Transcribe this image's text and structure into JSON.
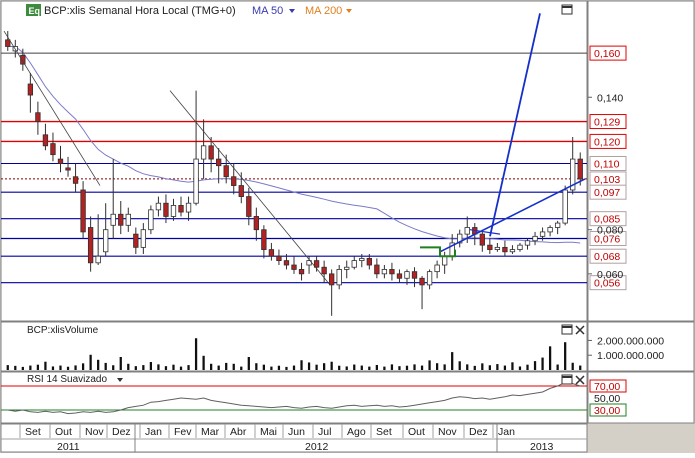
{
  "header": {
    "logo": "Eq",
    "symbol": "BCP:xlis Semanal Hora Local (TMG+0)",
    "ma50": "MA 50",
    "ma200": "MA 200"
  },
  "volume_panel": {
    "label": "BCP:xlisVolume"
  },
  "rsi_panel": {
    "label": "RSI 14 Suavizado"
  },
  "colors": {
    "up": "#ffffff",
    "down": "#b22222",
    "ma50": "#7b7bc8",
    "ma200": "#e08020",
    "resistance": "#e00000",
    "support": "#0000a0",
    "trend": "#1530c8",
    "rsi_line": "#606060",
    "rsi_70": "#e00000",
    "rsi_30": "#208020"
  },
  "chart_data": [
    {
      "type": "candlestick",
      "title": "BCP:xlis Semanal Hora Local (TMG+0)",
      "y_axis_labels": [
        "0,140",
        "0,080",
        "0,060"
      ],
      "ylim": [
        0.04,
        0.175
      ],
      "price_levels": [
        {
          "value": 0.16,
          "label": "0,160",
          "kind": "resistance"
        },
        {
          "value": 0.129,
          "label": "0,129",
          "kind": "resistance"
        },
        {
          "value": 0.12,
          "label": "0,120",
          "kind": "resistance"
        },
        {
          "value": 0.11,
          "label": "0,110",
          "kind": "support"
        },
        {
          "value": 0.103,
          "label": "0,103",
          "kind": "last"
        },
        {
          "value": 0.097,
          "label": "0,097",
          "kind": "support"
        },
        {
          "value": 0.085,
          "label": "0,085",
          "kind": "support"
        },
        {
          "value": 0.076,
          "label": "0,076",
          "kind": "support"
        },
        {
          "value": 0.068,
          "label": "0,068",
          "kind": "support"
        },
        {
          "value": 0.056,
          "label": "0,056",
          "kind": "support"
        }
      ],
      "candles": [
        [
          0.166,
          0.17,
          0.163,
          0.161
        ],
        [
          0.161,
          0.166,
          0.163,
          0.158
        ],
        [
          0.159,
          0.162,
          0.155,
          0.152
        ],
        [
          0.146,
          0.151,
          0.141,
          0.133
        ],
        [
          0.133,
          0.138,
          0.129,
          0.123
        ],
        [
          0.123,
          0.128,
          0.118,
          0.116
        ],
        [
          0.119,
          0.124,
          0.114,
          0.111
        ],
        [
          0.112,
          0.118,
          0.11,
          0.106
        ],
        [
          0.108,
          0.113,
          0.107,
          0.104
        ],
        [
          0.104,
          0.11,
          0.101,
          0.097
        ],
        [
          0.098,
          0.102,
          0.079,
          0.076
        ],
        [
          0.081,
          0.086,
          0.065,
          0.061
        ],
        [
          0.065,
          0.087,
          0.068,
          0.064
        ],
        [
          0.07,
          0.092,
          0.08,
          0.068
        ],
        [
          0.082,
          0.112,
          0.087,
          0.076
        ],
        [
          0.087,
          0.093,
          0.082,
          0.078
        ],
        [
          0.082,
          0.09,
          0.087,
          0.079
        ],
        [
          0.078,
          0.081,
          0.072,
          0.069
        ],
        [
          0.072,
          0.083,
          0.08,
          0.069
        ],
        [
          0.08,
          0.091,
          0.089,
          0.078
        ],
        [
          0.089,
          0.095,
          0.092,
          0.086
        ],
        [
          0.092,
          0.096,
          0.086,
          0.083
        ],
        [
          0.086,
          0.094,
          0.091,
          0.084
        ],
        [
          0.091,
          0.095,
          0.088,
          0.086
        ],
        [
          0.088,
          0.095,
          0.092,
          0.084
        ],
        [
          0.092,
          0.143,
          0.112,
          0.091
        ],
        [
          0.112,
          0.13,
          0.118,
          0.103
        ],
        [
          0.118,
          0.122,
          0.112,
          0.106
        ],
        [
          0.112,
          0.117,
          0.109,
          0.101
        ],
        [
          0.109,
          0.114,
          0.104,
          0.101
        ],
        [
          0.104,
          0.11,
          0.1,
          0.096
        ],
        [
          0.1,
          0.106,
          0.095,
          0.092
        ],
        [
          0.095,
          0.099,
          0.086,
          0.082
        ],
        [
          0.086,
          0.09,
          0.08,
          0.075
        ],
        [
          0.08,
          0.082,
          0.071,
          0.067
        ],
        [
          0.071,
          0.074,
          0.068,
          0.066
        ],
        [
          0.068,
          0.071,
          0.066,
          0.064
        ],
        [
          0.066,
          0.069,
          0.064,
          0.062
        ],
        [
          0.064,
          0.068,
          0.062,
          0.06
        ],
        [
          0.062,
          0.065,
          0.06,
          0.057
        ],
        [
          0.064,
          0.068,
          0.066,
          0.06
        ],
        [
          0.066,
          0.068,
          0.063,
          0.061
        ],
        [
          0.063,
          0.066,
          0.06,
          0.056
        ],
        [
          0.06,
          0.062,
          0.055,
          0.041
        ],
        [
          0.055,
          0.064,
          0.062,
          0.053
        ],
        [
          0.062,
          0.066,
          0.063,
          0.058
        ],
        [
          0.063,
          0.068,
          0.066,
          0.062
        ],
        [
          0.066,
          0.069,
          0.067,
          0.063
        ],
        [
          0.067,
          0.069,
          0.064,
          0.062
        ],
        [
          0.064,
          0.067,
          0.06,
          0.058
        ],
        [
          0.06,
          0.064,
          0.062,
          0.058
        ],
        [
          0.062,
          0.065,
          0.06,
          0.057
        ],
        [
          0.06,
          0.062,
          0.058,
          0.056
        ],
        [
          0.058,
          0.062,
          0.061,
          0.055
        ],
        [
          0.061,
          0.063,
          0.058,
          0.054
        ],
        [
          0.058,
          0.059,
          0.055,
          0.044
        ],
        [
          0.055,
          0.062,
          0.061,
          0.053
        ],
        [
          0.061,
          0.066,
          0.064,
          0.058
        ],
        [
          0.064,
          0.07,
          0.068,
          0.06
        ],
        [
          0.068,
          0.078,
          0.074,
          0.066
        ],
        [
          0.074,
          0.08,
          0.078,
          0.072
        ],
        [
          0.078,
          0.086,
          0.081,
          0.074
        ],
        [
          0.081,
          0.083,
          0.078,
          0.073
        ],
        [
          0.078,
          0.08,
          0.073,
          0.07
        ],
        [
          0.073,
          0.076,
          0.071,
          0.069
        ],
        [
          0.071,
          0.074,
          0.072,
          0.07
        ],
        [
          0.072,
          0.075,
          0.07,
          0.068
        ],
        [
          0.07,
          0.073,
          0.071,
          0.069
        ],
        [
          0.071,
          0.074,
          0.073,
          0.07
        ],
        [
          0.073,
          0.076,
          0.075,
          0.071
        ],
        [
          0.075,
          0.079,
          0.077,
          0.073
        ],
        [
          0.077,
          0.081,
          0.079,
          0.075
        ],
        [
          0.079,
          0.082,
          0.081,
          0.077
        ],
        [
          0.081,
          0.084,
          0.083,
          0.078
        ],
        [
          0.083,
          0.1,
          0.098,
          0.082
        ],
        [
          0.098,
          0.122,
          0.112,
          0.096
        ],
        [
          0.112,
          0.115,
          0.103,
          0.1
        ]
      ],
      "volume": {
        "axis_labels": [
          "2.000.000.000",
          "1.000.000.000"
        ],
        "ylim": [
          0,
          2300000000
        ],
        "values": [
          330,
          280,
          210,
          300,
          360,
          560,
          240,
          300,
          220,
          310,
          450,
          1030,
          690,
          480,
          320,
          880,
          420,
          260,
          330,
          540,
          380,
          260,
          360,
          230,
          330,
          2150,
          960,
          420,
          300,
          480,
          420,
          230,
          880,
          460,
          360,
          230,
          290,
          210,
          300,
          660,
          510,
          360,
          460,
          560,
          290,
          240,
          370,
          300,
          230,
          340,
          230,
          380,
          260,
          290,
          380,
          300,
          650,
          460,
          380,
          1210,
          590,
          380,
          280,
          450,
          320,
          400,
          300,
          520,
          240,
          360,
          600,
          840,
          1600,
          370,
          1880,
          490,
          300
        ]
      },
      "rsi": {
        "axis_labels": [
          "70,00",
          "50,00",
          "30,00"
        ],
        "ylim": [
          10,
          90
        ],
        "levels": [
          70,
          30
        ],
        "values": [
          30,
          28,
          30,
          27,
          26,
          28,
          26,
          27,
          24,
          25,
          27,
          26,
          28,
          26,
          27,
          30,
          34,
          36,
          38,
          43,
          44,
          46,
          48,
          50,
          49,
          48,
          50,
          46,
          44,
          42,
          40,
          38,
          37,
          36,
          35,
          34,
          35,
          36,
          34,
          33,
          35,
          36,
          34,
          33,
          35,
          37,
          38,
          36,
          37,
          38,
          36,
          37,
          35,
          36,
          38,
          40,
          42,
          44,
          46,
          50,
          52,
          51,
          49,
          50,
          48,
          50,
          52,
          55,
          54,
          56,
          58,
          60,
          66,
          70,
          76,
          74,
          70
        ]
      },
      "x_axis": {
        "months": [
          "Set",
          "Out",
          "Nov",
          "Dez",
          "Jan",
          "Fev",
          "Mar",
          "Abr",
          "Mai",
          "Jun",
          "Jul",
          "Ago",
          "Set",
          "Out",
          "Nov",
          "Dez",
          "Jan"
        ],
        "years": [
          "2011",
          "2012",
          "2013"
        ]
      }
    }
  ]
}
